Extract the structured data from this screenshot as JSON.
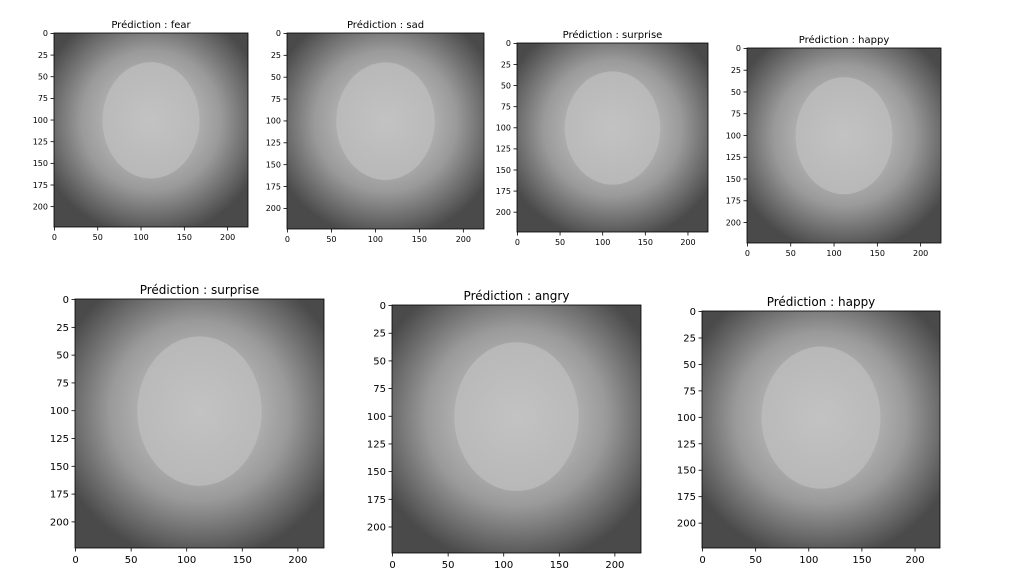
{
  "chart_data": [
    {
      "type": "image",
      "title": "Prédiction : fear",
      "xlim": [
        -0.5,
        223.5
      ],
      "ylim": [
        223.5,
        -0.5
      ],
      "xticks": [
        0,
        50,
        100,
        150,
        200
      ],
      "yticks": [
        0,
        25,
        50,
        75,
        100,
        125,
        150,
        175,
        200
      ]
    },
    {
      "type": "image",
      "title": "Prédiction : sad",
      "xlim": [
        -0.5,
        223.5
      ],
      "ylim": [
        223.5,
        -0.5
      ],
      "xticks": [
        0,
        50,
        100,
        150,
        200
      ],
      "yticks": [
        0,
        25,
        50,
        75,
        100,
        125,
        150,
        175,
        200
      ]
    },
    {
      "type": "image",
      "title": "Prédiction : surprise",
      "xlim": [
        -0.5,
        223.5
      ],
      "ylim": [
        223.5,
        -0.5
      ],
      "xticks": [
        0,
        50,
        100,
        150,
        200
      ],
      "yticks": [
        0,
        25,
        50,
        75,
        100,
        125,
        150,
        175,
        200
      ]
    },
    {
      "type": "image",
      "title": "Prédiction : happy",
      "xlim": [
        -0.5,
        223.5
      ],
      "ylim": [
        223.5,
        -0.5
      ],
      "xticks": [
        0,
        50,
        100,
        150,
        200
      ],
      "yticks": [
        0,
        25,
        50,
        75,
        100,
        125,
        150,
        175,
        200
      ]
    },
    {
      "type": "image",
      "title": "Prédiction : surprise",
      "xlim": [
        -0.5,
        223.5
      ],
      "ylim": [
        223.5,
        -0.5
      ],
      "xticks": [
        0,
        50,
        100,
        150,
        200
      ],
      "yticks": [
        0,
        25,
        50,
        75,
        100,
        125,
        150,
        175,
        200
      ]
    },
    {
      "type": "image",
      "title": "Prédiction : angry",
      "xlim": [
        -0.5,
        223.5
      ],
      "ylim": [
        223.5,
        -0.5
      ],
      "xticks": [
        0,
        50,
        100,
        150,
        200
      ],
      "yticks": [
        0,
        25,
        50,
        75,
        100,
        125,
        150,
        175,
        200
      ]
    },
    {
      "type": "image",
      "title": "Prédiction : happy",
      "xlim": [
        -0.5,
        223.5
      ],
      "ylim": [
        223.5,
        -0.5
      ],
      "xticks": [
        0,
        50,
        100,
        150,
        200
      ],
      "yticks": [
        0,
        25,
        50,
        75,
        100,
        125,
        150,
        175,
        200
      ]
    }
  ]
}
